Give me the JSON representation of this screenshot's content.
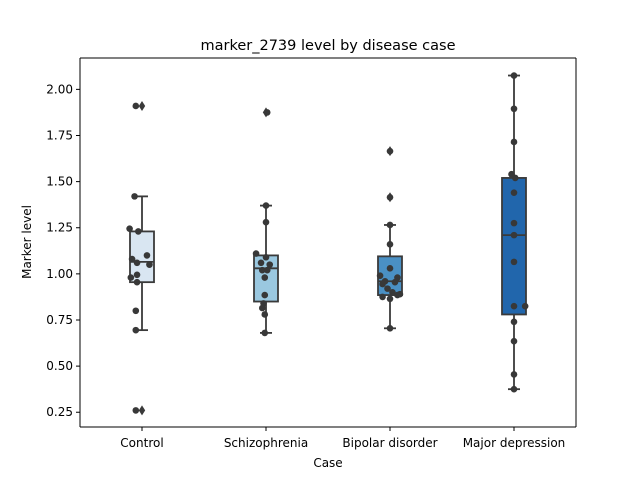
{
  "chart_data": {
    "type": "box",
    "title": "marker_2739 level by disease case",
    "xlabel": "Case",
    "ylabel": "Marker level",
    "ylim": [
      0.17,
      2.17
    ],
    "yticks": [
      0.25,
      0.5,
      0.75,
      1.0,
      1.25,
      1.5,
      1.75,
      2.0
    ],
    "ytick_labels": [
      "0.25",
      "0.50",
      "0.75",
      "1.00",
      "1.25",
      "1.50",
      "1.75",
      "2.00"
    ],
    "grid": false,
    "categories": [
      "Control",
      "Schizophrenia",
      "Bipolar disorder",
      "Major depression"
    ],
    "box_colors": [
      "#d9e6f2",
      "#9ac8e0",
      "#4a90c4",
      "#2166ac"
    ],
    "boxes": [
      {
        "q1": 0.955,
        "median": 1.065,
        "q3": 1.23,
        "whisker_low": 0.695,
        "whisker_high": 1.42,
        "outliers": [
          1.91,
          0.26
        ]
      },
      {
        "q1": 0.85,
        "median": 1.03,
        "q3": 1.1,
        "whisker_low": 0.68,
        "whisker_high": 1.37,
        "outliers": [
          1.875
        ]
      },
      {
        "q1": 0.885,
        "median": 0.96,
        "q3": 1.095,
        "whisker_low": 0.705,
        "whisker_high": 1.265,
        "outliers": [
          1.665,
          1.415
        ]
      },
      {
        "q1": 0.78,
        "median": 1.21,
        "q3": 1.52,
        "whisker_low": 0.375,
        "whisker_high": 2.075,
        "outliers": []
      }
    ],
    "points": [
      [
        {
          "x": -0.05,
          "y": 1.91
        },
        {
          "x": -0.06,
          "y": 1.42
        },
        {
          "x": -0.1,
          "y": 1.245
        },
        {
          "x": -0.03,
          "y": 1.23
        },
        {
          "x": -0.08,
          "y": 1.08
        },
        {
          "x": 0.04,
          "y": 1.1
        },
        {
          "x": -0.04,
          "y": 1.06
        },
        {
          "x": 0.06,
          "y": 1.05
        },
        {
          "x": -0.09,
          "y": 0.98
        },
        {
          "x": -0.04,
          "y": 0.995
        },
        {
          "x": -0.04,
          "y": 0.955
        },
        {
          "x": -0.05,
          "y": 0.8
        },
        {
          "x": -0.05,
          "y": 0.695
        },
        {
          "x": -0.05,
          "y": 0.26
        }
      ],
      [
        {
          "x": 0.01,
          "y": 1.875
        },
        {
          "x": 0.0,
          "y": 1.37
        },
        {
          "x": 0.0,
          "y": 1.28
        },
        {
          "x": -0.08,
          "y": 1.11
        },
        {
          "x": 0.0,
          "y": 1.09
        },
        {
          "x": -0.04,
          "y": 1.06
        },
        {
          "x": 0.03,
          "y": 1.05
        },
        {
          "x": -0.03,
          "y": 1.02
        },
        {
          "x": 0.01,
          "y": 1.02
        },
        {
          "x": -0.01,
          "y": 0.98
        },
        {
          "x": -0.01,
          "y": 0.885
        },
        {
          "x": -0.02,
          "y": 0.84
        },
        {
          "x": -0.03,
          "y": 0.815
        },
        {
          "x": -0.01,
          "y": 0.78
        },
        {
          "x": -0.01,
          "y": 0.68
        }
      ],
      [
        {
          "x": 0.0,
          "y": 1.665
        },
        {
          "x": 0.0,
          "y": 1.415
        },
        {
          "x": 0.0,
          "y": 1.265
        },
        {
          "x": 0.0,
          "y": 1.16
        },
        {
          "x": 0.0,
          "y": 1.03
        },
        {
          "x": -0.08,
          "y": 0.99
        },
        {
          "x": 0.06,
          "y": 0.98
        },
        {
          "x": -0.04,
          "y": 0.96
        },
        {
          "x": 0.04,
          "y": 0.955
        },
        {
          "x": -0.06,
          "y": 0.945
        },
        {
          "x": -0.02,
          "y": 0.92
        },
        {
          "x": 0.02,
          "y": 0.9
        },
        {
          "x": 0.08,
          "y": 0.89
        },
        {
          "x": -0.06,
          "y": 0.875
        },
        {
          "x": 0.06,
          "y": 0.885
        },
        {
          "x": 0.0,
          "y": 0.865
        },
        {
          "x": 0.0,
          "y": 0.705
        }
      ],
      [
        {
          "x": 0.0,
          "y": 2.075
        },
        {
          "x": 0.0,
          "y": 1.895
        },
        {
          "x": 0.0,
          "y": 1.715
        },
        {
          "x": -0.02,
          "y": 1.54
        },
        {
          "x": 0.01,
          "y": 1.52
        },
        {
          "x": 0.0,
          "y": 1.44
        },
        {
          "x": 0.0,
          "y": 1.275
        },
        {
          "x": 0.0,
          "y": 1.21
        },
        {
          "x": 0.0,
          "y": 1.065
        },
        {
          "x": 0.0,
          "y": 0.825
        },
        {
          "x": 0.09,
          "y": 0.825
        },
        {
          "x": 0.0,
          "y": 0.74
        },
        {
          "x": 0.0,
          "y": 0.635
        },
        {
          "x": 0.0,
          "y": 0.455
        },
        {
          "x": 0.0,
          "y": 0.375
        }
      ]
    ]
  }
}
